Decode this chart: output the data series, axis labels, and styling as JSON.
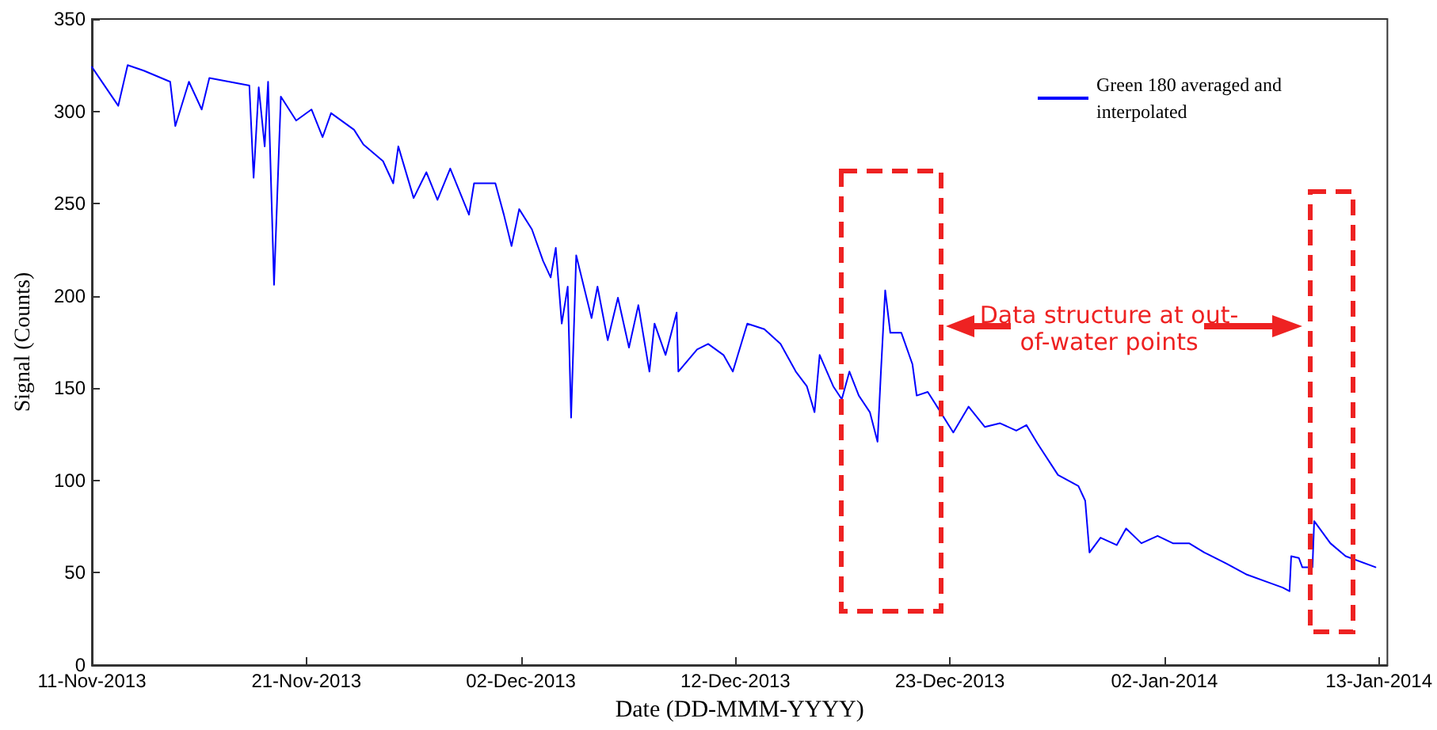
{
  "chart_data": {
    "type": "line",
    "xlabel": "Date (DD-MMM-YYYY)",
    "ylabel": "Signal (Counts)",
    "annotations": [
      "Data structure at out-of-water points"
    ],
    "xlim": [
      "2013-11-11T00:00",
      "2014-01-13T10:00"
    ],
    "xticks": [
      {
        "value": "2013-11-11T00:00",
        "label": "11-Nov-2013"
      },
      {
        "value": "2013-11-21T12:00",
        "label": "21-Nov-2013"
      },
      {
        "value": "2013-12-02T00:00",
        "label": "02-Dec-2013"
      },
      {
        "value": "2013-12-12T12:00",
        "label": "12-Dec-2013"
      },
      {
        "value": "2013-12-23T00:00",
        "label": "23-Dec-2013"
      },
      {
        "value": "2014-01-02T12:00",
        "label": "02-Jan-2014"
      },
      {
        "value": "2014-01-13T00:00",
        "label": "13-Jan-2014"
      }
    ],
    "ylim": [
      0,
      350
    ],
    "yticks": [
      0,
      50,
      100,
      150,
      200,
      250,
      300,
      350
    ],
    "grid": false,
    "legend": "top right",
    "marker": "none",
    "line_style": "solid",
    "series": [
      {
        "name": "Green 180 averaged and interpolated",
        "color": "#0000ff",
        "x": [
          "2013-11-11T00:00",
          "2013-11-12T07:00",
          "2013-11-12T18:00",
          "2013-11-13T13:00",
          "2013-11-14T20:00",
          "2013-11-15T02:00",
          "2013-11-15T18:00",
          "2013-11-16T09:00",
          "2013-11-16T18:00",
          "2013-11-18T17:00",
          "2013-11-18T22:00",
          "2013-11-19T04:00",
          "2013-11-19T11:00",
          "2013-11-19T15:00",
          "2013-11-19T22:00",
          "2013-11-20T06:00",
          "2013-11-21T00:00",
          "2013-11-21T18:00",
          "2013-11-22T07:00",
          "2013-11-22T17:00",
          "2013-11-23T20:00",
          "2013-11-24T07:00",
          "2013-11-25T06:00",
          "2013-11-25T18:00",
          "2013-11-26T00:00",
          "2013-11-26T18:00",
          "2013-11-27T09:00",
          "2013-11-27T22:00",
          "2013-11-28T13:00",
          "2013-11-29T11:00",
          "2013-11-29T17:00",
          "2013-11-30T18:00",
          "2013-12-01T04:00",
          "2013-12-01T13:00",
          "2013-12-01T22:00",
          "2013-12-02T13:00",
          "2013-12-03T02:00",
          "2013-12-03T11:00",
          "2013-12-03T17:00",
          "2013-12-04T00:00",
          "2013-12-04T07:00",
          "2013-12-04T11:00",
          "2013-12-04T17:00",
          "2013-12-05T11:00",
          "2013-12-05T18:00",
          "2013-12-06T06:00",
          "2013-12-06T18:00",
          "2013-12-07T07:00",
          "2013-12-07T18:00",
          "2013-12-08T07:00",
          "2013-12-08T13:00",
          "2013-12-09T02:00",
          "2013-12-09T15:00",
          "2013-12-09T17:00",
          "2013-12-10T15:00",
          "2013-12-11T04:00",
          "2013-12-11T22:00",
          "2013-12-12T09:00",
          "2013-12-13T02:00",
          "2013-12-13T22:00",
          "2013-12-14T17:00",
          "2013-12-15T11:00",
          "2013-12-16T00:00",
          "2013-12-16T09:00",
          "2013-12-16T15:00",
          "2013-12-17T07:00",
          "2013-12-17T17:00",
          "2013-12-18T02:00",
          "2013-12-18T13:00",
          "2013-12-19T02:00",
          "2013-12-19T11:00",
          "2013-12-19T15:00",
          "2013-12-19T20:00",
          "2013-12-20T02:00",
          "2013-12-20T15:00",
          "2013-12-21T04:00",
          "2013-12-21T09:00",
          "2013-12-21T22:00",
          "2013-12-22T09:00",
          "2013-12-23T04:00",
          "2013-12-23T22:00",
          "2013-12-24T17:00",
          "2013-12-25T11:00",
          "2013-12-26T06:00",
          "2013-12-26T18:00",
          "2013-12-27T07:00",
          "2013-12-28T07:00",
          "2013-12-29T07:00",
          "2013-12-29T15:00",
          "2013-12-29T20:00",
          "2013-12-30T09:00",
          "2013-12-31T04:00",
          "2013-12-31T15:00",
          "2014-01-01T09:00",
          "2014-01-02T04:00",
          "2014-01-02T22:00",
          "2014-01-03T17:00",
          "2014-01-04T11:00",
          "2014-01-05T13:00",
          "2014-01-06T13:00",
          "2014-01-07T13:00",
          "2014-01-08T07:00",
          "2014-01-08T15:00",
          "2014-01-08T17:00",
          "2014-01-09T02:00",
          "2014-01-09T06:00",
          "2014-01-09T18:00",
          "2014-01-09T20:00",
          "2014-01-10T15:00",
          "2014-01-11T09:00",
          "2014-01-12T20:00"
        ],
        "values": [
          324,
          303,
          325,
          322,
          316,
          292,
          316,
          301,
          318,
          314,
          264,
          313,
          281,
          316,
          206,
          308,
          295,
          301,
          286,
          299,
          290,
          282,
          273,
          261,
          281,
          253,
          267,
          252,
          269,
          244,
          261,
          261,
          244,
          227,
          247,
          236,
          219,
          210,
          226,
          185,
          205,
          134,
          222,
          188,
          205,
          176,
          199,
          172,
          195,
          159,
          185,
          168,
          191,
          159,
          171,
          174,
          168,
          159,
          185,
          182,
          174,
          159,
          151,
          137,
          168,
          151,
          144,
          159,
          146,
          137,
          121,
          159,
          203,
          180,
          180,
          163,
          146,
          148,
          140,
          126,
          140,
          129,
          131,
          127,
          130,
          120,
          103,
          97,
          89,
          61,
          69,
          65,
          74,
          66,
          70,
          66,
          66,
          61,
          55,
          49,
          45,
          42,
          40,
          59,
          58,
          53,
          53,
          78,
          66,
          59,
          53
        ]
      }
    ]
  }
}
